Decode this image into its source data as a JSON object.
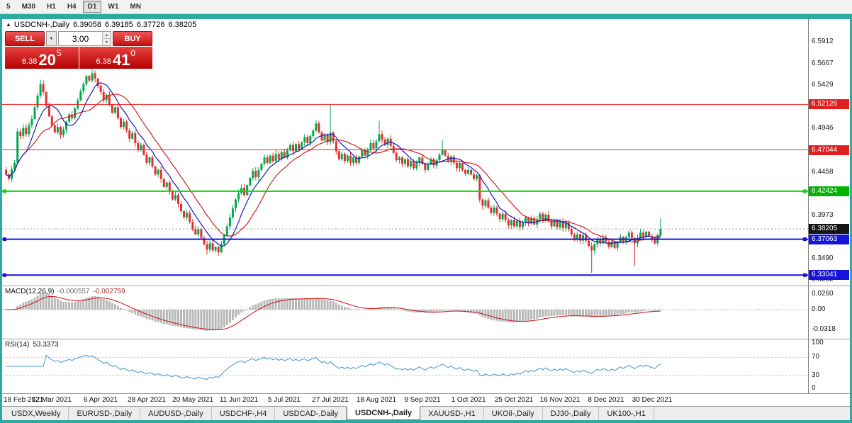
{
  "colors": {
    "frame": "#2FA9A1",
    "up_candle": "#00A94F",
    "down_candle": "#E23030",
    "ma_fast_blue": "#1A1AB4",
    "ma_slow_red": "#D42020",
    "macd_hist": "#B8B8B8",
    "macd_signal": "#CC2020",
    "rsi_line": "#4E9CD6",
    "current_price_badge": "#141414"
  },
  "icons": {
    "collapse": "▲",
    "caret_down": "▼",
    "spin_up": "▲",
    "spin_down": "▼"
  },
  "toolbar": {
    "timeframes": [
      {
        "label": "5",
        "active": false
      },
      {
        "label": "M30",
        "active": false
      },
      {
        "label": "H1",
        "active": false
      },
      {
        "label": "H4",
        "active": false
      },
      {
        "label": "D1",
        "active": true
      },
      {
        "label": "W1",
        "active": false
      },
      {
        "label": "MN",
        "active": false
      }
    ]
  },
  "chart": {
    "symbol_title": "USDCNH-,Daily",
    "ohlc": {
      "open": "6.39058",
      "high": "6.39185",
      "low": "6.37726",
      "close": "6.38205"
    },
    "trade_panel": {
      "sell": "SELL",
      "buy": "BUY",
      "volume": "3.00",
      "bid_prefix": "6.38",
      "bid_big": "20",
      "bid_sup": "5",
      "ask_prefix": "6.38",
      "ask_big": "41",
      "ask_sup": "0"
    },
    "price_axis": {
      "top_price": 6.6166,
      "bottom_price": 6.3188,
      "visible_labels": [
        {
          "text": "6.5912",
          "price": 6.5912
        },
        {
          "text": "6.5667",
          "price": 6.5667
        },
        {
          "text": "6.5429",
          "price": 6.5429
        },
        {
          "text": "6.4946",
          "price": 6.4946
        },
        {
          "text": "6.4458",
          "price": 6.4458
        },
        {
          "text": "6.3973",
          "price": 6.3973
        },
        {
          "text": "6.3490",
          "price": 6.349
        },
        {
          "text": "6.3252",
          "price": 6.3252
        }
      ]
    },
    "levels": [
      {
        "label": "6.52126",
        "price": 6.52126,
        "line": "#F02020",
        "badge": "#E02020",
        "width": 1,
        "handles": false
      },
      {
        "label": "6.47044",
        "price": 6.47044,
        "line": "#F02020",
        "badge": "#E02020",
        "width": 1,
        "handles": false
      },
      {
        "label": "6.42424",
        "price": 6.42424,
        "line": "#00DC00",
        "badge": "#00B400",
        "width": 2,
        "handles": true
      },
      {
        "label": "6.37063",
        "price": 6.37063,
        "line": "#1414E6",
        "badge": "#1414DC",
        "width": 2,
        "handles": true
      },
      {
        "label": "6.33041",
        "price": 6.33041,
        "line": "#1414E6",
        "badge": "#1414DC",
        "width": 2,
        "handles": true
      }
    ],
    "current": {
      "label": "6.38205",
      "price": 6.38205
    },
    "date_labels": [
      {
        "i": 0,
        "text": "18 Feb 2021"
      },
      {
        "i": 16,
        "text": "12 Mar 2021"
      },
      {
        "i": 33,
        "text": "6 Apr 2021"
      },
      {
        "i": 49,
        "text": "28 Apr 2021"
      },
      {
        "i": 65,
        "text": "20 May 2021"
      },
      {
        "i": 81,
        "text": "11 Jun 2021"
      },
      {
        "i": 97,
        "text": "5 Jul 2021"
      },
      {
        "i": 113,
        "text": "27 Jul 2021"
      },
      {
        "i": 129,
        "text": "18 Aug 2021"
      },
      {
        "i": 145,
        "text": "9 Sep 2021"
      },
      {
        "i": 161,
        "text": "1 Oct 2021"
      },
      {
        "i": 177,
        "text": "25 Oct 2021"
      },
      {
        "i": 193,
        "text": "16 Nov 2021"
      },
      {
        "i": 209,
        "text": "8 Dec 2021"
      },
      {
        "i": 225,
        "text": "30 Dec 2021"
      }
    ]
  },
  "chart_data": {
    "type": "candlestick",
    "symbol": "USDCNH",
    "timeframe": "Daily",
    "first_open": 6.448,
    "ma_fast_period": 8,
    "ma_slow_period": 16,
    "closes": [
      6.443,
      6.438,
      6.449,
      6.456,
      6.491,
      6.486,
      6.495,
      6.488,
      6.498,
      6.505,
      6.518,
      6.531,
      6.544,
      6.535,
      6.52,
      6.508,
      6.498,
      6.49,
      6.496,
      6.487,
      6.493,
      6.502,
      6.51,
      6.506,
      6.517,
      6.526,
      6.536,
      6.544,
      6.553,
      6.548,
      6.556,
      6.55,
      6.542,
      6.535,
      6.526,
      6.532,
      6.521,
      6.512,
      6.518,
      6.506,
      6.496,
      6.502,
      6.492,
      6.483,
      6.489,
      6.478,
      6.47,
      6.476,
      6.465,
      6.456,
      6.462,
      6.452,
      6.443,
      6.448,
      6.438,
      6.429,
      6.434,
      6.424,
      6.415,
      6.42,
      6.41,
      6.402,
      6.395,
      6.4,
      6.39,
      6.382,
      6.376,
      6.382,
      6.372,
      6.365,
      6.359,
      6.366,
      6.358,
      6.362,
      6.356,
      6.365,
      6.375,
      6.385,
      6.395,
      6.405,
      6.415,
      6.422,
      6.428,
      6.42,
      6.431,
      6.439,
      6.447,
      6.44,
      6.448,
      6.455,
      6.462,
      6.456,
      6.464,
      6.458,
      6.466,
      6.46,
      6.468,
      6.462,
      6.47,
      6.476,
      6.469,
      6.477,
      6.471,
      6.479,
      6.485,
      6.478,
      6.486,
      6.492,
      6.5,
      6.49,
      6.481,
      6.488,
      6.479,
      6.49,
      6.48,
      6.469,
      6.46,
      6.466,
      6.458,
      6.464,
      6.456,
      6.462,
      6.456,
      6.463,
      6.47,
      6.464,
      6.471,
      6.478,
      6.472,
      6.48,
      6.488,
      6.482,
      6.476,
      6.483,
      6.475,
      6.467,
      6.459,
      6.462,
      6.455,
      6.46,
      6.452,
      6.458,
      6.45,
      6.456,
      6.462,
      6.455,
      6.448,
      6.454,
      6.46,
      6.453,
      6.459,
      6.465,
      6.47,
      6.464,
      6.457,
      6.463,
      6.456,
      6.45,
      6.456,
      6.448,
      6.444,
      6.448,
      6.443,
      6.438,
      6.442,
      6.415,
      6.408,
      6.414,
      6.406,
      6.4,
      6.406,
      6.399,
      6.393,
      6.399,
      6.392,
      6.386,
      6.392,
      6.385,
      6.391,
      6.384,
      6.389,
      6.395,
      6.388,
      6.394,
      6.387,
      6.393,
      6.399,
      6.392,
      6.398,
      6.391,
      6.385,
      6.391,
      6.384,
      6.39,
      6.383,
      6.389,
      6.382,
      6.376,
      6.37,
      6.376,
      6.369,
      6.375,
      6.369,
      6.363,
      6.358,
      6.365,
      6.371,
      6.366,
      6.372,
      6.368,
      6.362,
      6.368,
      6.361,
      6.367,
      6.373,
      6.367,
      6.373,
      6.378,
      6.372,
      6.366,
      6.372,
      6.378,
      6.373,
      6.379,
      6.374,
      6.37,
      6.366,
      6.375,
      6.382
    ],
    "high_overrides": {
      "12": 6.549,
      "30": 6.561,
      "113": 6.521,
      "130": 6.503,
      "152": 6.481,
      "228": 6.394
    },
    "low_overrides": {
      "70": 6.353,
      "74": 6.352,
      "204": 6.333,
      "219": 6.341
    }
  },
  "macd": {
    "title": "MACD(12,26,9)",
    "value_macd": "-0.000557",
    "value_signal": "-0.002759",
    "axis_labels": [
      "0.0260",
      "0.00",
      "-0.0318"
    ]
  },
  "rsi": {
    "title": "RSI(14)",
    "value": "53.3373",
    "axis_labels": [
      "100",
      "70",
      "30",
      "0"
    ],
    "levels": [
      70,
      30
    ]
  },
  "tabs": [
    {
      "label": "USDX,Weekly",
      "active": false
    },
    {
      "label": "EURUSD-,Daily",
      "active": false
    },
    {
      "label": "AUDUSD-,Daily",
      "active": false
    },
    {
      "label": "USDCHF-,H4",
      "active": false
    },
    {
      "label": "USDCAD-,Daily",
      "active": false
    },
    {
      "label": "USDCNH-,Daily",
      "active": true
    },
    {
      "label": "XAUUSD-,H1",
      "active": false
    },
    {
      "label": "UKOil-,Daily",
      "active": false
    },
    {
      "label": "DJ30-,Daily",
      "active": false
    },
    {
      "label": "UK100-,H1",
      "active": false
    }
  ]
}
